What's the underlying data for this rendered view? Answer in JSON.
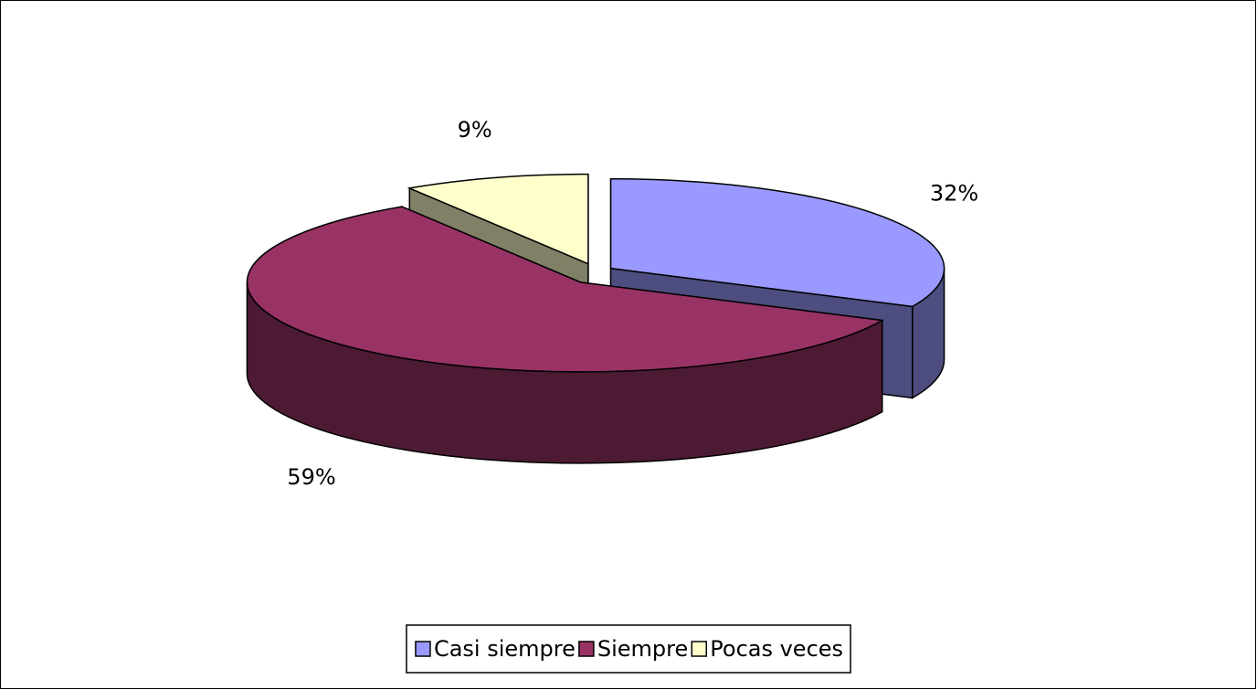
{
  "chart_data": {
    "type": "pie3d",
    "categories": [
      "Casi siempre",
      "Siempre",
      "Pocas veces"
    ],
    "values": [
      32,
      59,
      9
    ],
    "value_labels": [
      "32%",
      "59%",
      "9%"
    ],
    "colors": [
      "#9999ff",
      "#993366",
      "#ffffcc"
    ],
    "legend": "bottom"
  }
}
